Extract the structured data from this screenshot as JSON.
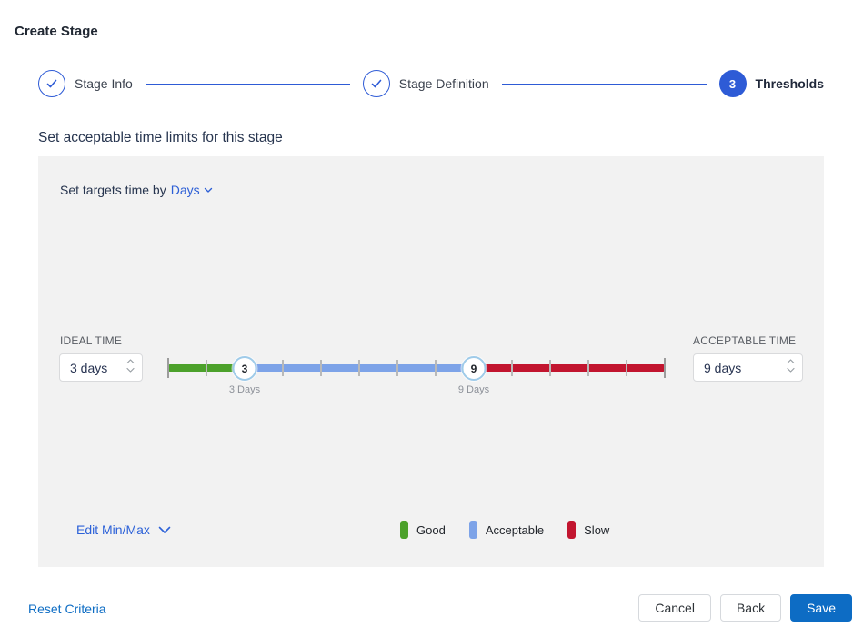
{
  "page": {
    "title": "Create Stage"
  },
  "stepper": {
    "steps": [
      {
        "label": "Stage Info",
        "state": "complete"
      },
      {
        "label": "Stage Definition",
        "state": "complete"
      },
      {
        "label": "Thresholds",
        "state": "active",
        "number": "3"
      }
    ]
  },
  "section": {
    "heading": "Set acceptable time limits for this stage"
  },
  "panel": {
    "target_time_label": "Set targets time by",
    "target_time_unit": "Days",
    "ideal_time": {
      "label": "IDEAL TIME",
      "value": "3 days"
    },
    "acceptable_time": {
      "label": "ACCEPTABLE TIME",
      "value": "9 days"
    },
    "slider": {
      "min": 1,
      "max": 14,
      "tick_step": 1,
      "handles": [
        {
          "value": 3,
          "label": "3 Days",
          "name": "slider-handle-ideal"
        },
        {
          "value": 9,
          "label": "9 Days",
          "name": "slider-handle-acceptable"
        }
      ],
      "segments": [
        {
          "name": "Good",
          "from": 1,
          "to": 3,
          "color": "#4ca12b"
        },
        {
          "name": "Acceptable",
          "from": 3,
          "to": 9,
          "color": "#7da3e8"
        },
        {
          "name": "Slow",
          "from": 9,
          "to": 14,
          "color": "#c2152f"
        }
      ]
    },
    "edit_minmax_label": "Edit Min/Max",
    "legend": [
      {
        "label": "Good",
        "color": "#4ca12b"
      },
      {
        "label": "Acceptable",
        "color": "#7da3e8"
      },
      {
        "label": "Slow",
        "color": "#c2152f"
      }
    ]
  },
  "footer": {
    "reset_label": "Reset Criteria",
    "cancel_label": "Cancel",
    "back_label": "Back",
    "save_label": "Save"
  },
  "colors": {
    "stepper_blue": "#2e5bd6",
    "link_blue": "#2d5fd6",
    "action_blue": "#0d6cc4",
    "panel_bg": "#f2f2f2"
  }
}
